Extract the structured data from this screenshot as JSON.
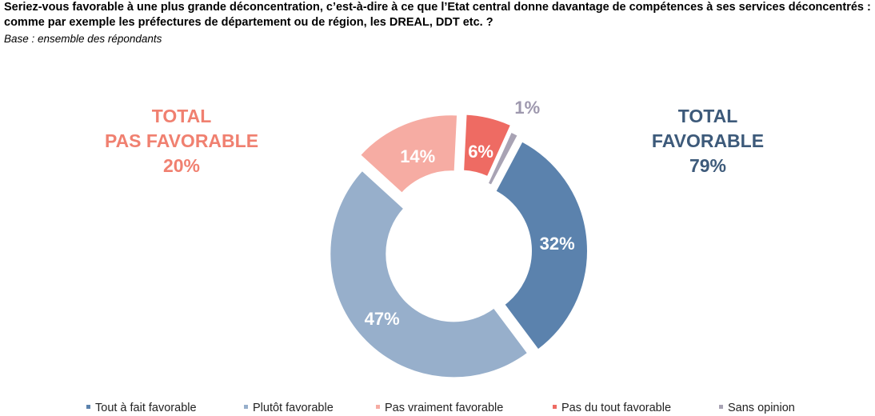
{
  "question": "Seriez-vous favorable à une plus grande déconcentration, c’est-à-dire à ce que l’Etat central donne davantage de compétences à ses services déconcentrés : comme par exemple les préfectures de département ou de région, les DREAL, DDT etc. ?",
  "base": "Base : ensemble des répondants",
  "totals": {
    "pas_favorable": {
      "line1": "TOTAL",
      "line2": "PAS FAVORABLE",
      "value": "20%",
      "color": "#f08070"
    },
    "favorable": {
      "line1": "TOTAL",
      "line2": "FAVORABLE",
      "value": "79%",
      "color": "#3d5a7a"
    }
  },
  "chart_data": {
    "type": "pie",
    "donut": true,
    "categories": [
      "Tout à fait favorable",
      "Plutôt favorable",
      "Pas vraiment favorable",
      "Pas du tout favorable",
      "Sans opinion"
    ],
    "values": [
      32,
      47,
      14,
      6,
      1
    ],
    "labels": [
      "32%",
      "47%",
      "14%",
      "6%",
      "1%"
    ],
    "colors": [
      "#5b82ad",
      "#97afcb",
      "#f6aca3",
      "#ee6b63",
      "#a8a3b4"
    ],
    "legend_position": "bottom"
  }
}
